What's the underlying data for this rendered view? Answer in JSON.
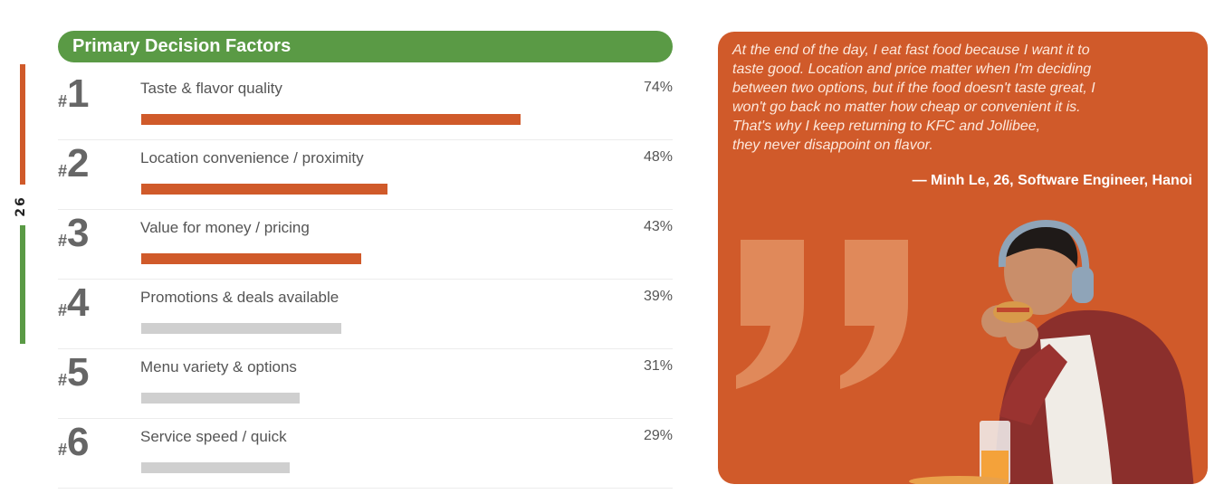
{
  "page": {
    "number": "26",
    "colors": {
      "orange": "#d05a2a",
      "green": "#5a9a45",
      "gray": "#cfcfcf"
    }
  },
  "factors_header": {
    "title": "Primary Decision Factors"
  },
  "chart_data": {
    "type": "bar",
    "orientation": "horizontal",
    "title": "Primary Decision Factors",
    "categories": [
      "Taste & flavor quality",
      "Location convenience / proximity",
      "Value for money / pricing",
      "Promotions & deals available",
      "Menu variety & options",
      "Service speed / quick"
    ],
    "values": [
      74,
      48,
      43,
      39,
      31,
      29
    ],
    "value_labels": [
      "74%",
      "48%",
      "43%",
      "39%",
      "31%",
      "29%"
    ],
    "ranks": [
      "1",
      "2",
      "3",
      "4",
      "5",
      "6"
    ],
    "rank_prefix": "#",
    "highlighted": [
      true,
      true,
      true,
      false,
      false,
      false
    ],
    "unit": "%",
    "xlim": [
      0,
      100
    ]
  },
  "quote": {
    "text": "At the end of the day, I eat fast food because I want it to\ntaste good. Location and price matter when I'm deciding\nbetween two options, but if the food doesn't taste great, I\nwon't go back no matter how cheap or convenient it is.\nThat's why I keep returning to KFC and Jollibee,\nthey never disappoint on flavor.",
    "attribution": "— Minh Le, 26, Software Engineer, Hanoi",
    "quote_mark_icon": "closing-quote-icon",
    "photo_icon": "person-eating-sandwich-icon"
  }
}
